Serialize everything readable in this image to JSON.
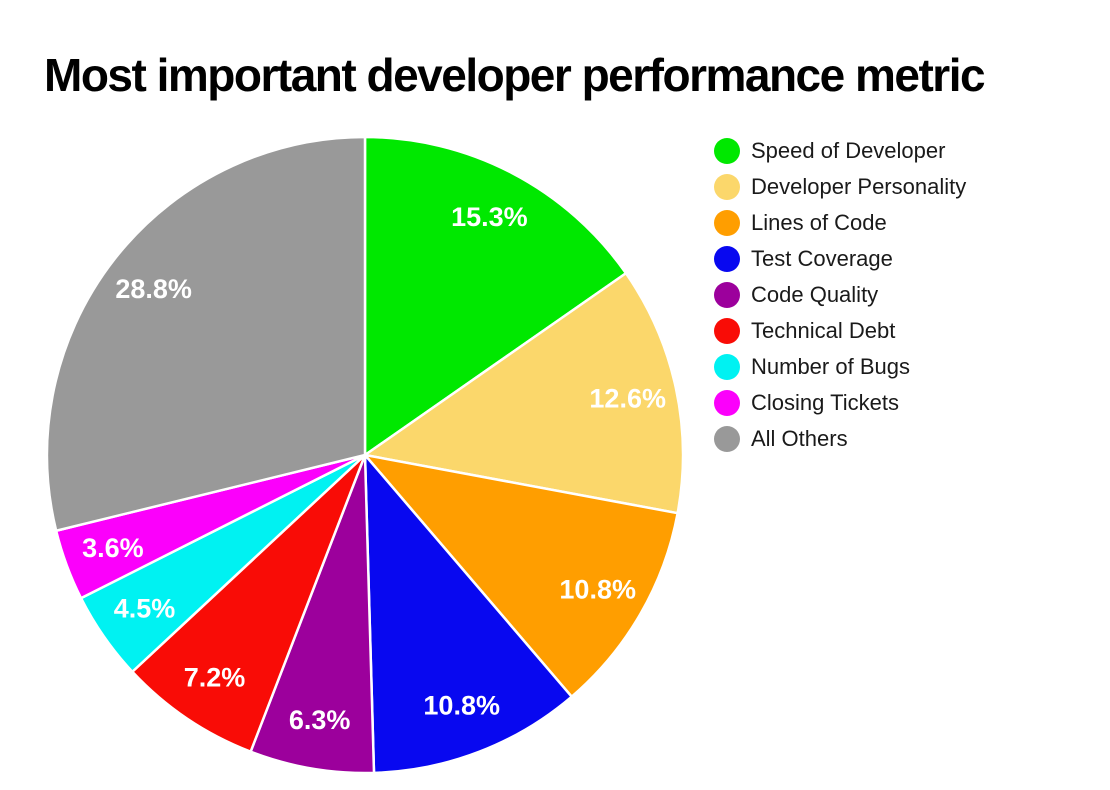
{
  "title": "Most important developer performance metric",
  "chart_data": {
    "type": "pie",
    "title": "Most important developer performance metric",
    "start_angle_deg": 0,
    "direction": "clockwise",
    "legend_position": "right",
    "label_color": "#ffffff",
    "slices": [
      {
        "label": "Speed of Developer",
        "value": 15.3,
        "pct_label": "15.3%",
        "color": "#00e800"
      },
      {
        "label": "Developer Personality",
        "value": 12.6,
        "pct_label": "12.6%",
        "color": "#fbd76b"
      },
      {
        "label": "Lines of Code",
        "value": 10.8,
        "pct_label": "10.8%",
        "color": "#ff9e00"
      },
      {
        "label": "Test Coverage",
        "value": 10.8,
        "pct_label": "10.8%",
        "color": "#0808f0"
      },
      {
        "label": "Code Quality",
        "value": 6.3,
        "pct_label": "6.3%",
        "color": "#9c009c"
      },
      {
        "label": "Technical Debt",
        "value": 7.2,
        "pct_label": "7.2%",
        "color": "#f90c06"
      },
      {
        "label": "Number of Bugs",
        "value": 4.5,
        "pct_label": "4.5%",
        "color": "#00f2f2"
      },
      {
        "label": "Closing Tickets",
        "value": 3.6,
        "pct_label": "3.6%",
        "color": "#fb00fb"
      },
      {
        "label": "All Others",
        "value": 28.8,
        "pct_label": "28.8%",
        "color": "#999999"
      }
    ]
  }
}
